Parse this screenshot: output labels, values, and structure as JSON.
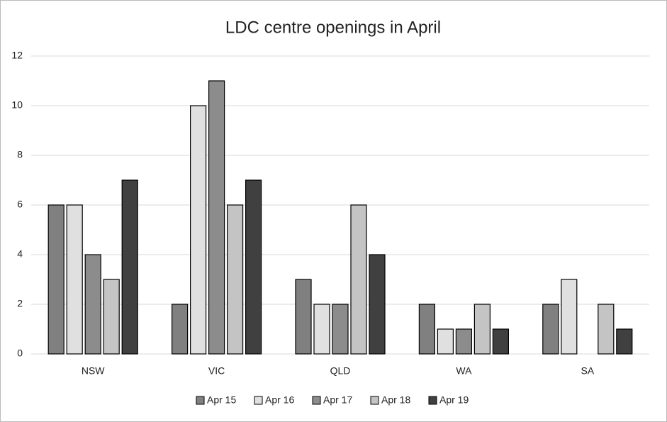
{
  "chart_data": {
    "type": "bar",
    "title": "LDC centre openings in April",
    "categories": [
      "NSW",
      "VIC",
      "QLD",
      "WA",
      "SA"
    ],
    "series": [
      {
        "name": "Apr 15",
        "color": "#808080",
        "values": [
          6,
          2,
          3,
          2,
          2
        ]
      },
      {
        "name": "Apr 16",
        "color": "#e0e0e0",
        "values": [
          6,
          10,
          2,
          1,
          3
        ]
      },
      {
        "name": "Apr 17",
        "color": "#8c8c8c",
        "values": [
          4,
          11,
          2,
          1,
          0
        ]
      },
      {
        "name": "Apr 18",
        "color": "#c4c4c4",
        "values": [
          3,
          6,
          6,
          2,
          2
        ]
      },
      {
        "name": "Apr 19",
        "color": "#404040",
        "values": [
          7,
          7,
          4,
          1,
          1
        ]
      }
    ],
    "ylim": [
      0,
      12
    ],
    "yticks": [
      0,
      2,
      4,
      6,
      8,
      10,
      12
    ],
    "grid": true,
    "legend": "bottom"
  }
}
